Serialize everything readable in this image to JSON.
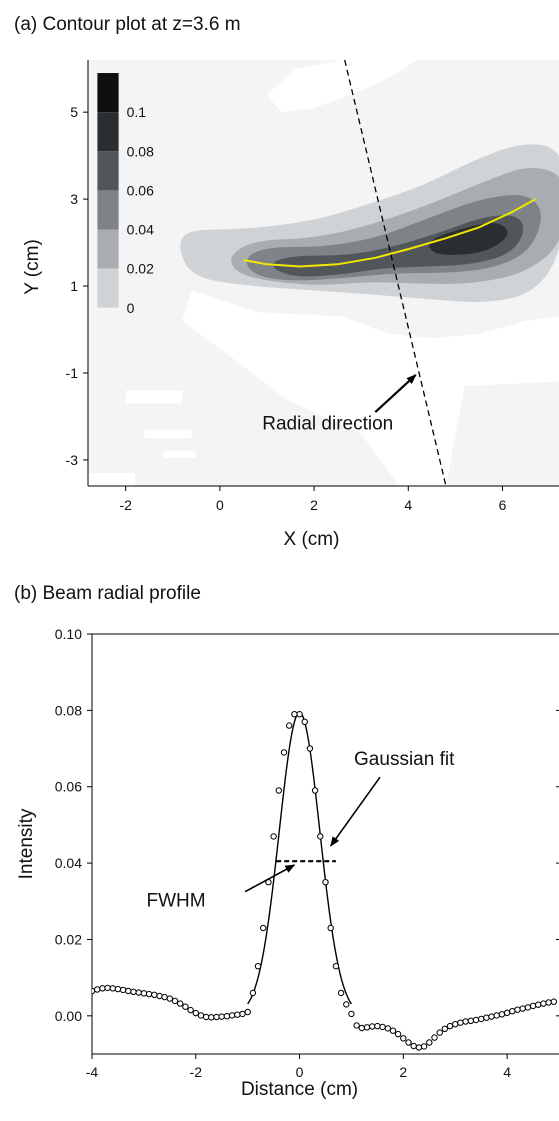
{
  "chart_data": [
    {
      "panel": "a",
      "type": "heatmap",
      "title": "(a) Contour plot at z=3.6 m",
      "xlabel": "X (cm)",
      "ylabel": "Y (cm)",
      "xlim": [
        -2.8,
        7.2
      ],
      "ylim": [
        -3.6,
        6.2
      ],
      "xticks": [
        -2,
        0,
        2,
        4,
        6
      ],
      "yticks": [
        -3,
        -1,
        1,
        3,
        5
      ],
      "colorbar": {
        "levels": [
          0,
          0.02,
          0.04,
          0.06,
          0.08,
          0.1
        ],
        "labels": [
          "0",
          "0.02",
          "0.04",
          "0.06",
          "0.08",
          "0.1"
        ],
        "colors": [
          "#f4f4f4",
          "#d0d3d6",
          "#a9adb1",
          "#7e8387",
          "#50565a",
          "#2a2e31",
          "#0d0f10"
        ],
        "placement": "top-left"
      },
      "beam_centerline": {
        "color": "#f2e600",
        "x": [
          0.5,
          1.0,
          1.7,
          2.5,
          3.3,
          4.0,
          4.8,
          5.5,
          6.2,
          6.7
        ],
        "y": [
          1.6,
          1.5,
          1.45,
          1.5,
          1.65,
          1.85,
          2.1,
          2.35,
          2.7,
          3.0
        ]
      },
      "radial_line": {
        "x": [
          2.65,
          4.8
        ],
        "y": [
          6.2,
          -3.6
        ]
      },
      "annotation": {
        "text": "Radial direction",
        "arrow_tip": [
          4.2,
          -1.0
        ],
        "text_at": [
          0.9,
          -2.3
        ]
      }
    },
    {
      "panel": "b",
      "type": "scatter",
      "title": "(b)  Beam radial profile",
      "xlabel": "Distance (cm)",
      "ylabel": "Intensity",
      "xlim": [
        -4,
        5
      ],
      "ylim": [
        -0.01,
        0.1
      ],
      "xticks": [
        -4,
        -2,
        0,
        2,
        4
      ],
      "xtick_labels": [
        "-4",
        "-2",
        "0",
        "2",
        "4"
      ],
      "yticks": [
        0.0,
        0.02,
        0.04,
        0.06,
        0.08,
        0.1
      ],
      "ytick_labels": [
        "0.00",
        "0.02",
        "0.04",
        "0.06",
        "0.08",
        "0.10"
      ],
      "measured": {
        "x": [
          -4.0,
          -3.9,
          -3.8,
          -3.7,
          -3.6,
          -3.5,
          -3.4,
          -3.3,
          -3.2,
          -3.1,
          -3.0,
          -2.9,
          -2.8,
          -2.7,
          -2.6,
          -2.5,
          -2.4,
          -2.3,
          -2.2,
          -2.1,
          -2.0,
          -1.9,
          -1.8,
          -1.7,
          -1.6,
          -1.5,
          -1.4,
          -1.3,
          -1.2,
          -1.1,
          -1.0,
          -0.9,
          -0.8,
          -0.7,
          -0.6,
          -0.5,
          -0.4,
          -0.3,
          -0.2,
          -0.1,
          0.0,
          0.1,
          0.2,
          0.3,
          0.4,
          0.5,
          0.6,
          0.7,
          0.8,
          0.9,
          1.0,
          1.1,
          1.2,
          1.3,
          1.4,
          1.5,
          1.6,
          1.7,
          1.8,
          1.9,
          2.0,
          2.1,
          2.2,
          2.3,
          2.4,
          2.5,
          2.6,
          2.7,
          2.8,
          2.9,
          3.0,
          3.1,
          3.2,
          3.3,
          3.4,
          3.5,
          3.6,
          3.7,
          3.8,
          3.9,
          4.0,
          4.1,
          4.2,
          4.3,
          4.4,
          4.5,
          4.6,
          4.7,
          4.8,
          4.9
        ],
        "y": [
          0.0065,
          0.0069,
          0.0072,
          0.0073,
          0.0072,
          0.007,
          0.0068,
          0.0065,
          0.0063,
          0.0061,
          0.0059,
          0.0057,
          0.0055,
          0.0052,
          0.0049,
          0.0045,
          0.0039,
          0.0032,
          0.0024,
          0.0015,
          0.0007,
          0.0001,
          -0.0003,
          -0.0004,
          -0.0003,
          -0.0002,
          -0.0001,
          0.0001,
          0.0003,
          0.0005,
          0.001,
          0.006,
          0.013,
          0.023,
          0.035,
          0.047,
          0.059,
          0.069,
          0.076,
          0.079,
          0.079,
          0.077,
          0.07,
          0.059,
          0.047,
          0.035,
          0.023,
          0.013,
          0.006,
          0.003,
          0.0005,
          -0.0025,
          -0.0032,
          -0.003,
          -0.0028,
          -0.0027,
          -0.0029,
          -0.0033,
          -0.0039,
          -0.0048,
          -0.0059,
          -0.007,
          -0.0079,
          -0.0083,
          -0.008,
          -0.007,
          -0.0057,
          -0.0044,
          -0.0034,
          -0.0027,
          -0.0022,
          -0.0018,
          -0.0015,
          -0.0013,
          -0.0011,
          -0.0008,
          -0.0005,
          -0.0002,
          0.0001,
          0.0004,
          0.0008,
          0.0012,
          0.0016,
          0.0019,
          0.0022,
          0.0026,
          0.0029,
          0.0032,
          0.0035,
          0.0037
        ]
      },
      "fit": {
        "name": "Gaussian fit",
        "amplitude": 0.0795,
        "center": 0.0,
        "sigma": 0.3925,
        "x_range": [
          -1.0,
          1.0
        ]
      },
      "fwhm": {
        "x": [
          -0.45,
          0.7
        ],
        "y": 0.0405
      },
      "annotations": [
        {
          "text": "Gaussian fit",
          "arrow_tip": [
            0.6,
            0.0445
          ],
          "text_at": [
            1.05,
            0.0675
          ]
        },
        {
          "text": "FWHM",
          "arrow_tip": [
            -0.1,
            0.0395
          ],
          "text_at": [
            -2.95,
            0.0305
          ]
        }
      ]
    }
  ]
}
